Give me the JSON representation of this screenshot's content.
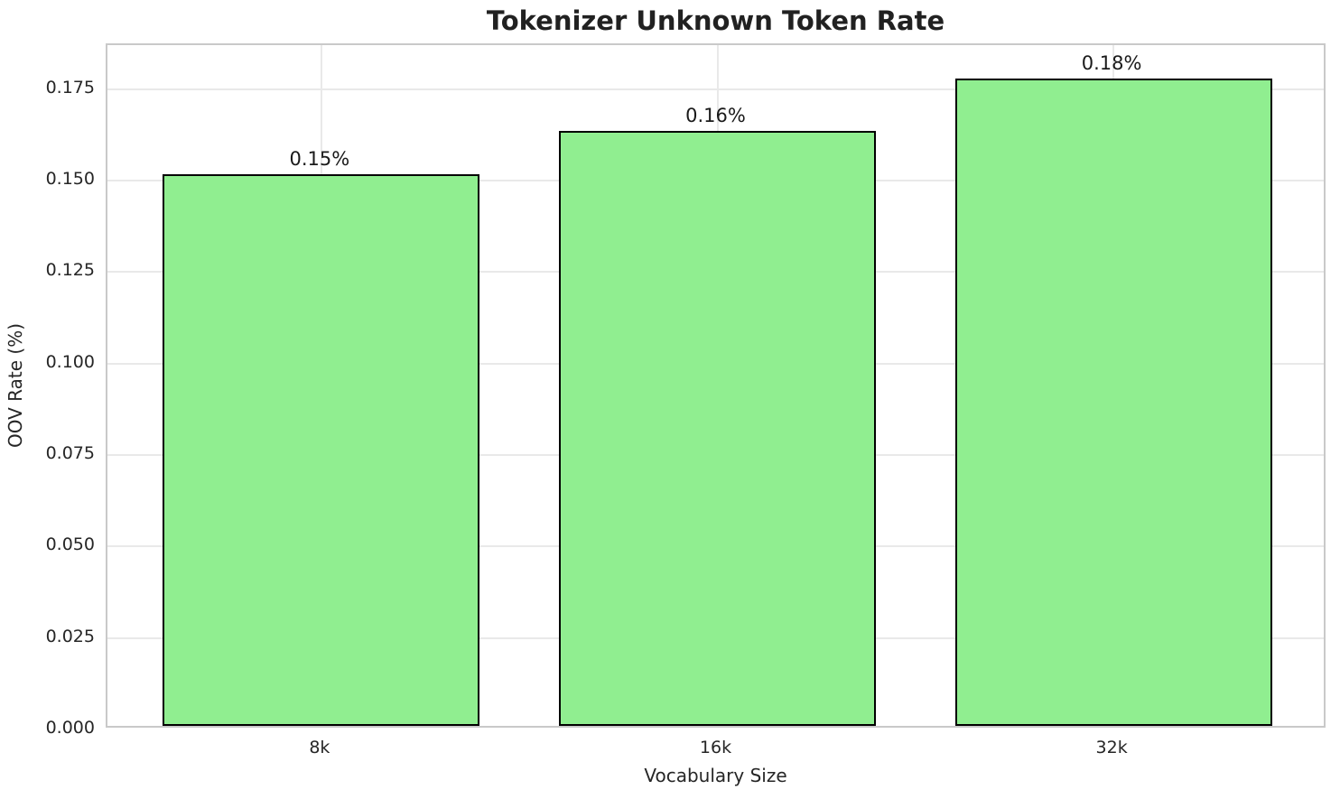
{
  "chart_data": {
    "type": "bar",
    "title": "Tokenizer Unknown Token Rate",
    "xlabel": "Vocabulary Size",
    "ylabel": "OOV Rate (%)",
    "categories": [
      "8k",
      "16k",
      "32k"
    ],
    "values": [
      0.1507,
      0.1626,
      0.1769
    ],
    "bar_labels": [
      "0.15%",
      "0.16%",
      "0.18%"
    ],
    "yticks": [
      0.0,
      0.025,
      0.05,
      0.075,
      0.1,
      0.125,
      0.15,
      0.175
    ],
    "ytick_labels": [
      "0.000",
      "0.025",
      "0.050",
      "0.075",
      "0.100",
      "0.125",
      "0.150",
      "0.175"
    ],
    "ylim": [
      0,
      0.187
    ],
    "grid": true,
    "legend_position": "none",
    "bar_color": "#90EE90",
    "bar_edge_color": "#000000",
    "grid_color": "#e9e9e9",
    "spine_color": "#c9c9c9",
    "text_color": "#262626",
    "title_color": "#212121",
    "background_color": "#ffffff"
  }
}
